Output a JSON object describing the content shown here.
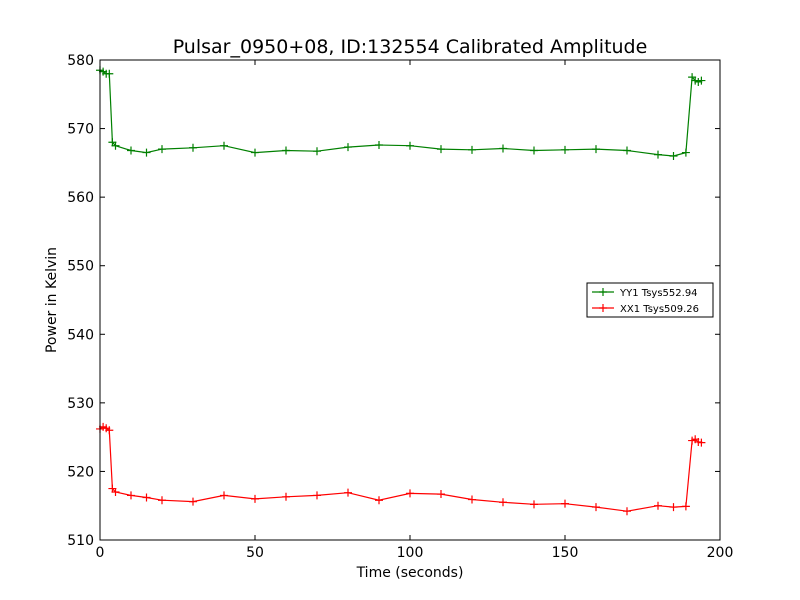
{
  "chart_data": {
    "type": "line",
    "title": "Pulsar_0950+08, ID:132554 Calibrated Amplitude",
    "xlabel": "Time (seconds)",
    "ylabel": "Power in Kelvin",
    "xlim": [
      0,
      200
    ],
    "ylim": [
      510,
      580
    ],
    "xticks": [
      0,
      50,
      100,
      150,
      200
    ],
    "yticks": [
      510,
      520,
      530,
      540,
      550,
      560,
      570,
      580
    ],
    "grid": false,
    "legend_position": "center-right",
    "marker": "+",
    "series": [
      {
        "name": "YY1 Tsys552.94",
        "color": "#008000",
        "x": [
          0,
          1,
          2,
          3,
          4,
          5,
          10,
          15,
          20,
          30,
          40,
          50,
          60,
          70,
          80,
          90,
          100,
          110,
          120,
          130,
          140,
          150,
          160,
          170,
          180,
          185,
          189,
          191,
          192,
          193,
          194
        ],
        "y": [
          578.5,
          578.3,
          578.0,
          578.0,
          568.0,
          567.5,
          566.8,
          566.5,
          567.0,
          567.2,
          567.5,
          566.5,
          566.8,
          566.7,
          567.3,
          567.6,
          567.5,
          567.0,
          566.9,
          567.1,
          566.8,
          566.9,
          567.0,
          566.8,
          566.2,
          566.0,
          566.5,
          577.5,
          577.0,
          576.8,
          577.0
        ]
      },
      {
        "name": "XX1 Tsys509.26",
        "color": "#ff0000",
        "x": [
          0,
          1,
          2,
          3,
          4,
          5,
          10,
          15,
          20,
          30,
          40,
          50,
          60,
          70,
          80,
          90,
          100,
          110,
          120,
          130,
          140,
          150,
          160,
          170,
          180,
          185,
          189,
          191,
          192,
          193,
          194
        ],
        "y": [
          526.2,
          526.5,
          526.3,
          526.0,
          517.5,
          517.0,
          516.5,
          516.2,
          515.8,
          515.6,
          516.5,
          516.0,
          516.3,
          516.5,
          516.9,
          515.8,
          516.8,
          516.7,
          515.9,
          515.5,
          515.2,
          515.3,
          514.8,
          514.2,
          515.0,
          514.8,
          514.9,
          524.5,
          524.7,
          524.3,
          524.2
        ]
      }
    ]
  }
}
